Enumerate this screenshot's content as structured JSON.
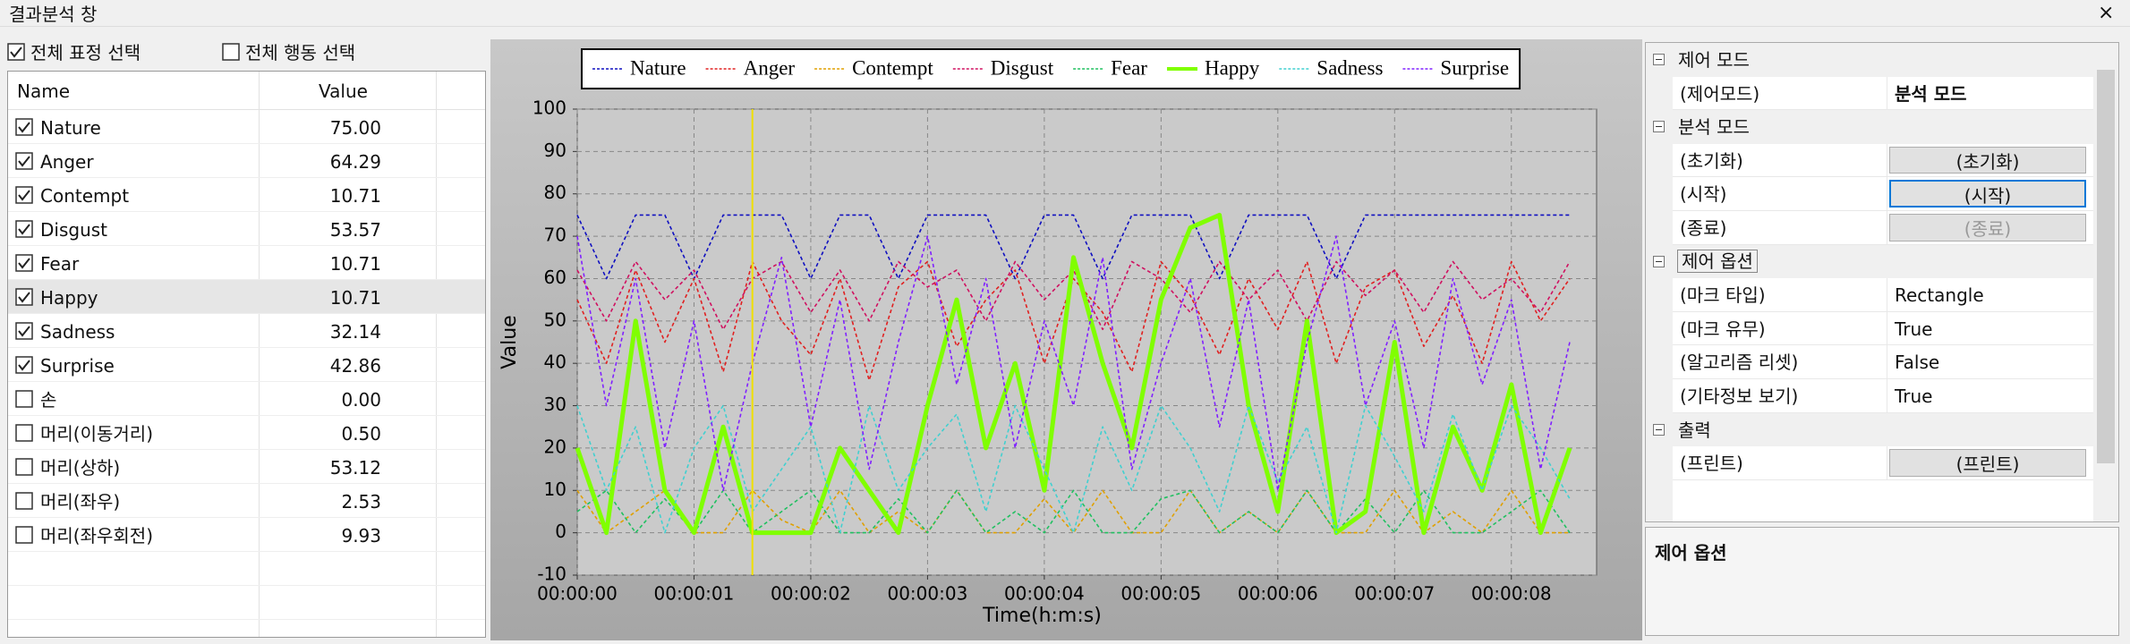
{
  "window": {
    "title": "결과분석 창",
    "close": "×"
  },
  "left_panel": {
    "select_all_expressions": {
      "label": "전체 표정 선택",
      "checked": true
    },
    "select_all_actions": {
      "label": "전체 행동 선택",
      "checked": false
    },
    "table": {
      "columns": [
        "Name",
        "Value"
      ],
      "rows": [
        {
          "name": "Nature",
          "value": "75.00",
          "checked": true
        },
        {
          "name": "Anger",
          "value": "64.29",
          "checked": true
        },
        {
          "name": "Contempt",
          "value": "10.71",
          "checked": true
        },
        {
          "name": "Disgust",
          "value": "53.57",
          "checked": true
        },
        {
          "name": "Fear",
          "value": "10.71",
          "checked": true
        },
        {
          "name": "Happy",
          "value": "10.71",
          "checked": true,
          "selected": true
        },
        {
          "name": "Sadness",
          "value": "32.14",
          "checked": true
        },
        {
          "name": "Surprise",
          "value": "42.86",
          "checked": true
        },
        {
          "name": "손",
          "value": "0.00",
          "checked": false
        },
        {
          "name": "머리(이동거리)",
          "value": "0.50",
          "checked": false
        },
        {
          "name": "머리(상하)",
          "value": "53.12",
          "checked": false
        },
        {
          "name": "머리(좌우)",
          "value": "2.53",
          "checked": false
        },
        {
          "name": "머리(좌우회전)",
          "value": "9.93",
          "checked": false
        }
      ]
    }
  },
  "chart_data": {
    "type": "line",
    "x_label": "Time(h:m:s)",
    "y_label": "Value",
    "x": [
      0,
      0.25,
      0.5,
      0.75,
      1,
      1.25,
      1.5,
      1.75,
      2,
      2.25,
      2.5,
      2.75,
      3,
      3.25,
      3.5,
      3.75,
      4,
      4.25,
      4.5,
      4.75,
      5,
      5.25,
      5.5,
      5.75,
      6,
      6.25,
      6.5,
      6.75,
      7,
      7.25,
      7.5,
      7.75,
      8,
      8.25,
      8.5
    ],
    "xlim": [
      0,
      8.73
    ],
    "ylim": [
      -10,
      100
    ],
    "xticks": [
      {
        "value": 0,
        "label": "00:00:00"
      },
      {
        "value": 1,
        "label": "00:00:01"
      },
      {
        "value": 2,
        "label": "00:00:02"
      },
      {
        "value": 3,
        "label": "00:00:03"
      },
      {
        "value": 4,
        "label": "00:00:04"
      },
      {
        "value": 5,
        "label": "00:00:05"
      },
      {
        "value": 6,
        "label": "00:00:06"
      },
      {
        "value": 7,
        "label": "00:00:07"
      },
      {
        "value": 8,
        "label": "00:00:08"
      }
    ],
    "yticks": [
      -10,
      0,
      10,
      20,
      30,
      40,
      50,
      60,
      70,
      80,
      90,
      100
    ],
    "grid": true,
    "cursor_x": 1.5,
    "cursor_color": "#f0e000",
    "series": [
      {
        "name": "Nature",
        "color": "#1010c0",
        "style": "dashed",
        "width": 1.6,
        "values": [
          75,
          60,
          75,
          75,
          60,
          75,
          75,
          75,
          60,
          75,
          75,
          60,
          75,
          75,
          75,
          60,
          75,
          75,
          60,
          75,
          75,
          75,
          60,
          75,
          75,
          75,
          60,
          75,
          75,
          75,
          75,
          75,
          75,
          75,
          75
        ]
      },
      {
        "name": "Anger",
        "color": "#e02020",
        "style": "dashed",
        "width": 1.6,
        "values": [
          55,
          40,
          62,
          45,
          60,
          38,
          64,
          50,
          42,
          60,
          36,
          58,
          64,
          44,
          55,
          62,
          40,
          60,
          52,
          38,
          64,
          56,
          42,
          60,
          48,
          64,
          40,
          58,
          62,
          44,
          56,
          40,
          64,
          50,
          60
        ]
      },
      {
        "name": "Contempt",
        "color": "#e0a000",
        "style": "dashed",
        "width": 1.6,
        "values": [
          10,
          0,
          5,
          10,
          0,
          0,
          10,
          3,
          0,
          10,
          0,
          5,
          0,
          10,
          0,
          0,
          8,
          0,
          10,
          0,
          0,
          10,
          0,
          5,
          0,
          10,
          0,
          0,
          10,
          0,
          5,
          0,
          10,
          0,
          0
        ]
      },
      {
        "name": "Disgust",
        "color": "#d01060",
        "style": "dashed",
        "width": 1.6,
        "values": [
          62,
          50,
          64,
          55,
          62,
          48,
          60,
          64,
          52,
          62,
          50,
          64,
          58,
          62,
          50,
          64,
          55,
          62,
          48,
          64,
          60,
          52,
          64,
          55,
          62,
          50,
          64,
          56,
          62,
          52,
          64,
          55,
          60,
          52,
          64
        ]
      },
      {
        "name": "Fear",
        "color": "#20c060",
        "style": "dashed",
        "width": 1.6,
        "values": [
          5,
          10,
          0,
          8,
          0,
          10,
          0,
          5,
          10,
          0,
          0,
          8,
          0,
          10,
          0,
          5,
          0,
          10,
          0,
          0,
          8,
          10,
          0,
          5,
          0,
          10,
          0,
          8,
          0,
          10,
          0,
          0,
          5,
          10,
          0
        ]
      },
      {
        "name": "Happy",
        "color": "#80ff00",
        "style": "solid",
        "width": 5,
        "values": [
          20,
          0,
          50,
          10,
          0,
          25,
          0,
          0,
          0,
          20,
          10,
          0,
          30,
          55,
          20,
          40,
          10,
          65,
          40,
          20,
          55,
          72,
          75,
          30,
          5,
          50,
          0,
          5,
          45,
          0,
          25,
          10,
          35,
          0,
          20
        ]
      },
      {
        "name": "Sadness",
        "color": "#40d0d0",
        "style": "dashed",
        "width": 1.6,
        "values": [
          30,
          10,
          25,
          0,
          20,
          30,
          5,
          15,
          25,
          0,
          30,
          10,
          20,
          28,
          5,
          30,
          15,
          0,
          25,
          10,
          30,
          20,
          5,
          30,
          12,
          25,
          0,
          30,
          18,
          5,
          28,
          10,
          30,
          20,
          8
        ]
      },
      {
        "name": "Surprise",
        "color": "#8020ff",
        "style": "dashed",
        "width": 1.6,
        "values": [
          70,
          30,
          60,
          20,
          50,
          10,
          40,
          65,
          25,
          55,
          15,
          45,
          70,
          35,
          60,
          20,
          50,
          30,
          65,
          15,
          40,
          60,
          25,
          55,
          10,
          45,
          70,
          30,
          50,
          20,
          60,
          35,
          55,
          15,
          45
        ]
      }
    ]
  },
  "property_grid": {
    "sections": [
      {
        "title": "제어 모드",
        "rows": [
          {
            "name": "(제어모드)",
            "value": "분석 모드",
            "kind": "bold"
          }
        ]
      },
      {
        "title": "분석 모드",
        "rows": [
          {
            "name": "(초기화)",
            "value": "(초기화)",
            "kind": "button"
          },
          {
            "name": "(시작)",
            "value": "(시작)",
            "kind": "button-focused"
          },
          {
            "name": "(종료)",
            "value": "(종료)",
            "kind": "button-disabled"
          }
        ]
      },
      {
        "title": "제어 옵션",
        "selected": true,
        "rows": [
          {
            "name": "(마크 타입)",
            "value": "Rectangle",
            "kind": "text"
          },
          {
            "name": "(마크 유무)",
            "value": "True",
            "kind": "text"
          },
          {
            "name": "(알고리즘 리셋)",
            "value": "False",
            "kind": "text"
          },
          {
            "name": "(기타정보 보기)",
            "value": "True",
            "kind": "text"
          }
        ]
      },
      {
        "title": "출력",
        "rows": [
          {
            "name": "(프린트)",
            "value": "(프린트)",
            "kind": "button"
          }
        ]
      }
    ],
    "description": "제어 옵션"
  }
}
